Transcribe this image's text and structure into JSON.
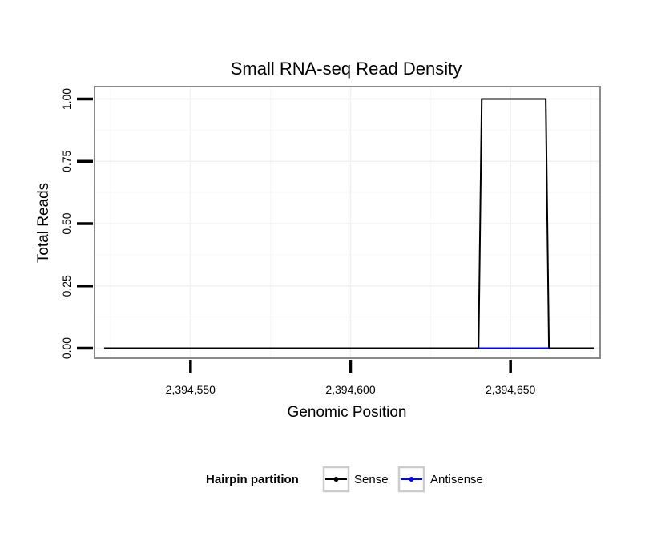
{
  "chart_data": {
    "type": "line",
    "title": "Small RNA-seq Read Density",
    "xlabel": "Genomic Position",
    "ylabel": "Total Reads",
    "xlim": [
      2394520,
      2394678
    ],
    "ylim": [
      -0.04,
      1.05
    ],
    "x_ticks": [
      2394550,
      2394600,
      2394650
    ],
    "x_tick_labels": [
      "2,394,550",
      "2,394,600",
      "2,394,650"
    ],
    "y_ticks": [
      0,
      0.25,
      0.5,
      0.75,
      1.0
    ],
    "y_tick_labels": [
      "0.00",
      "0.25",
      "0.50",
      "0.75",
      "1.00"
    ],
    "grid": true,
    "series": [
      {
        "name": "Sense",
        "color": "#000000",
        "x": [
          2394523,
          2394640,
          2394641,
          2394661,
          2394662,
          2394676
        ],
        "y": [
          0,
          0,
          1,
          1,
          0,
          0
        ]
      },
      {
        "name": "Antisense",
        "color": "#0000ff",
        "x": [
          2394640,
          2394662
        ],
        "y": [
          0,
          0
        ]
      }
    ],
    "legend": {
      "title": "Hairpin partition",
      "position": "bottom",
      "entries": [
        "Sense",
        "Antisense"
      ]
    }
  }
}
